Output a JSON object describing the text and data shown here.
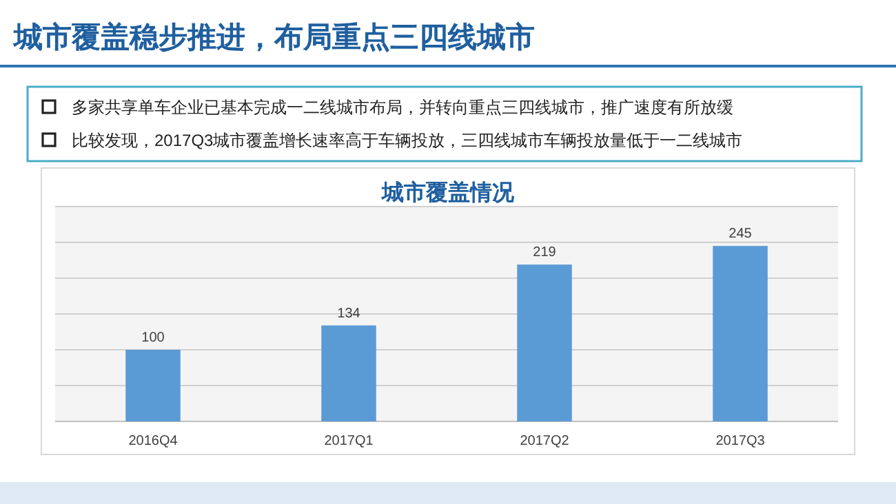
{
  "chart_data": {
    "type": "bar",
    "title": "城市覆盖稳步推进，布局重点三四线城市",
    "subtitle": "城市覆盖情况",
    "annotations": [
      "多家共享单车企业已基本完成一二线城市布局，并转向重点三四线城市，推广速度有所放缓",
      "比较发现，2017Q3城市覆盖增长速率高于车辆投放，三四线城市车辆投放量低于一二线城市"
    ],
    "categories": [
      "2016Q4",
      "2017Q1",
      "2017Q2",
      "2017Q3"
    ],
    "values": [
      100,
      134,
      219,
      245
    ],
    "color": "#5b9bd5",
    "ylim": [
      0,
      300
    ],
    "yticks": [
      {
        "value": 0,
        "label": null
      },
      {
        "value": 50,
        "label": null
      },
      {
        "value": 100,
        "label": null
      },
      {
        "value": 150,
        "label": null
      },
      {
        "value": 200,
        "label": null
      },
      {
        "value": 250,
        "label": null
      },
      {
        "value": 300,
        "label": null
      }
    ],
    "grid": "y",
    "data_labels": true
  }
}
